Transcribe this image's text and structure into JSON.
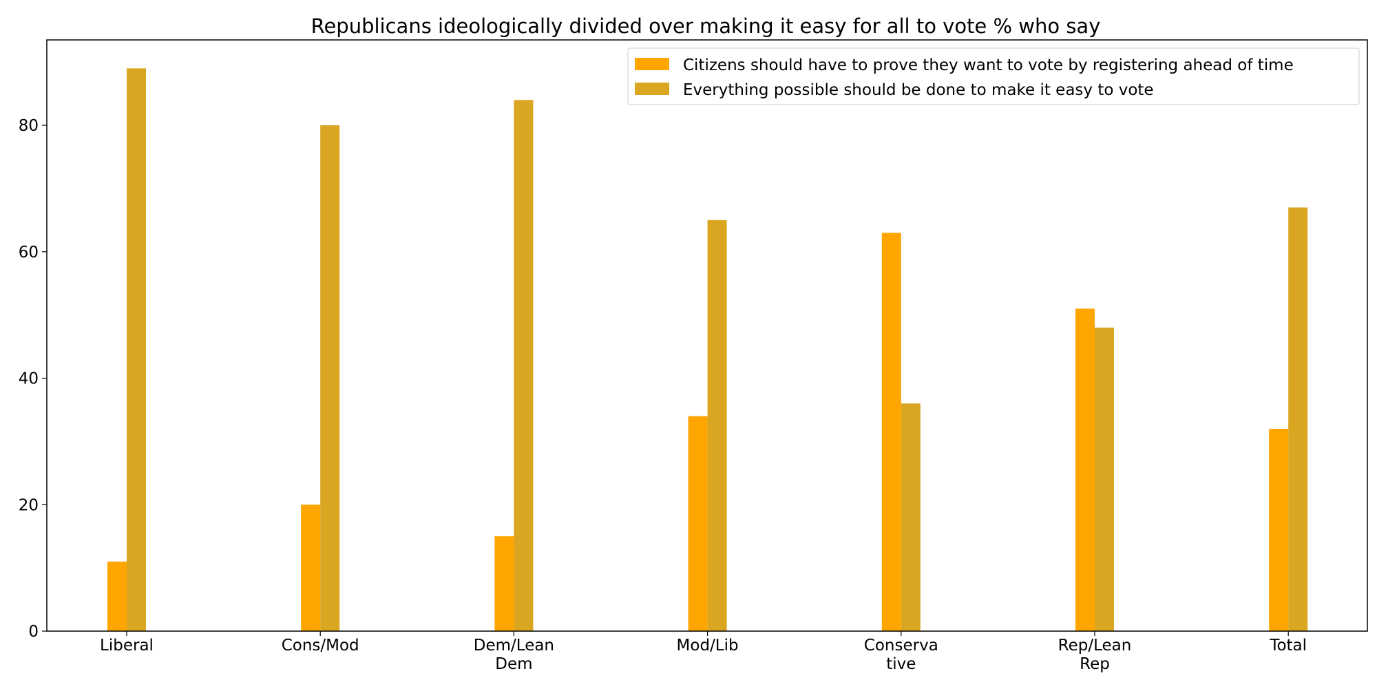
{
  "chart_data": {
    "type": "bar",
    "title": "Republicans ideologically divided over making it easy for all to vote % who say",
    "xlabel": "",
    "ylabel": "",
    "categories": [
      [
        "Liberal"
      ],
      [
        "Cons/Mod"
      ],
      [
        "Dem/Lean",
        "Dem"
      ],
      [
        "Mod/Lib"
      ],
      [
        "Conserva",
        "tive"
      ],
      [
        "Rep/Lean",
        "Rep"
      ],
      [
        "Total"
      ]
    ],
    "series": [
      {
        "name": "Citizens should have to prove they want to vote by registering ahead of time",
        "color": "#FFA500",
        "values": [
          11,
          20,
          15,
          34,
          63,
          51,
          32
        ]
      },
      {
        "name": "Everything possible should be done to make it easy to vote",
        "color": "#DAA520",
        "values": [
          89,
          80,
          84,
          65,
          36,
          48,
          67
        ]
      }
    ],
    "ylim": [
      0,
      93.5
    ],
    "yticks": [
      0,
      20,
      40,
      60,
      80
    ],
    "grid": false,
    "legend_position": "top-right"
  }
}
